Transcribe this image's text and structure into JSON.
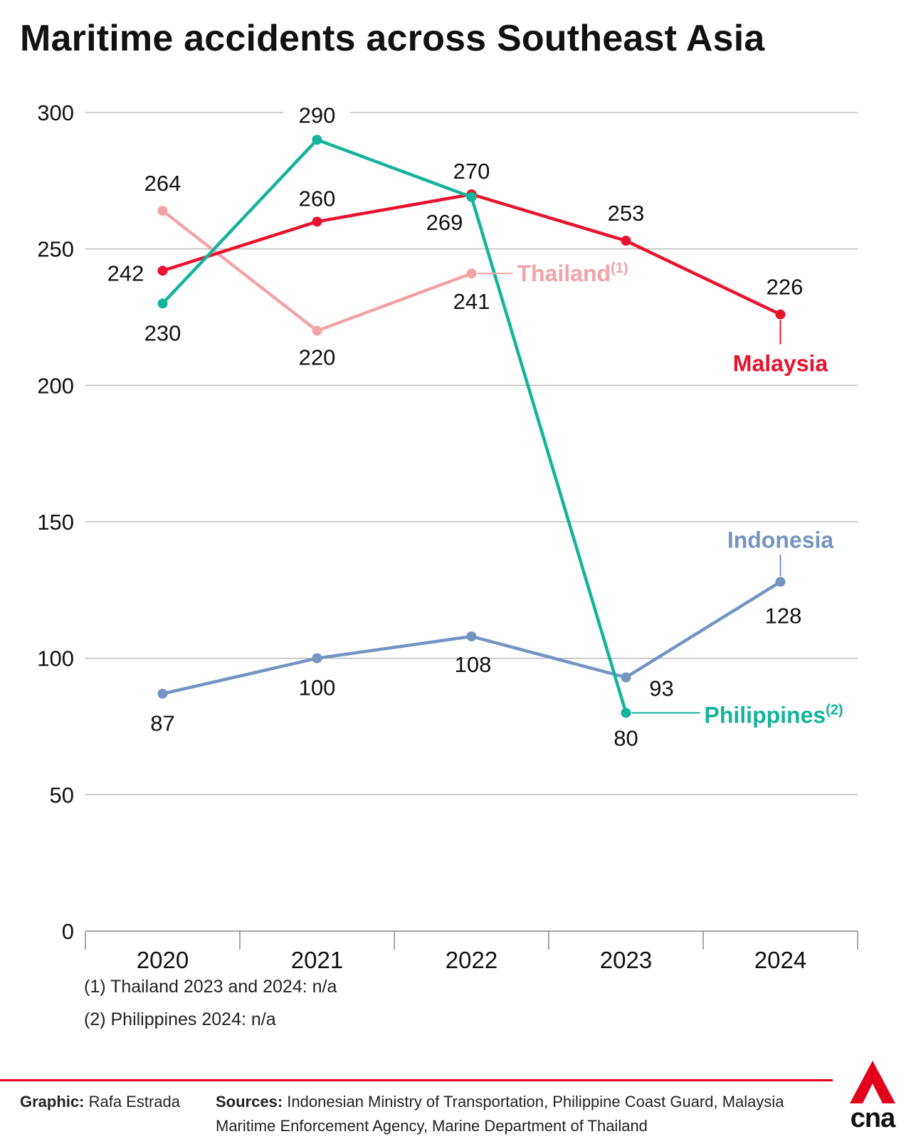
{
  "title": "Maritime accidents across Southeast Asia",
  "colors": {
    "malaysia": "#e8132f",
    "thailand": "#f2a3a8",
    "philippines": "#14b39b",
    "indonesia": "#7594c1",
    "grid": "#b5b5b5",
    "accent": "#e3001b"
  },
  "chart_data": {
    "type": "line",
    "title": "Maritime accidents across Southeast Asia",
    "xlabel": "",
    "ylabel": "",
    "x": [
      "2020",
      "2021",
      "2022",
      "2023",
      "2024"
    ],
    "ylim": [
      0,
      300
    ],
    "yticks": [
      0,
      50,
      100,
      150,
      200,
      250,
      300
    ],
    "grid": true,
    "series": [
      {
        "name": "Malaysia",
        "color": "#e8132f",
        "values": [
          242,
          260,
          270,
          253,
          226
        ]
      },
      {
        "name": "Thailand",
        "superscript": "(1)",
        "color": "#f2a3a8",
        "values": [
          264,
          220,
          241,
          null,
          null
        ]
      },
      {
        "name": "Philippines",
        "superscript": "(2)",
        "color": "#14b39b",
        "values": [
          230,
          290,
          269,
          80,
          null
        ]
      },
      {
        "name": "Indonesia",
        "color": "#7594c1",
        "values": [
          87,
          100,
          108,
          93,
          128
        ]
      }
    ]
  },
  "notes": [
    "(1) Thailand 2023 and 2024: n/a",
    "(2) Philippines 2024: n/a"
  ],
  "footer": {
    "graphic_label": "Graphic:",
    "graphic_value": "Rafa Estrada",
    "sources_label": "Sources:",
    "sources_value": "Indonesian Ministry of Transportation, Philippine Coast Guard, Malaysia Maritime Enforcement Agency, Marine Department of Thailand"
  },
  "logo": {
    "text": "cna",
    "icon": "cna-logo-icon"
  }
}
